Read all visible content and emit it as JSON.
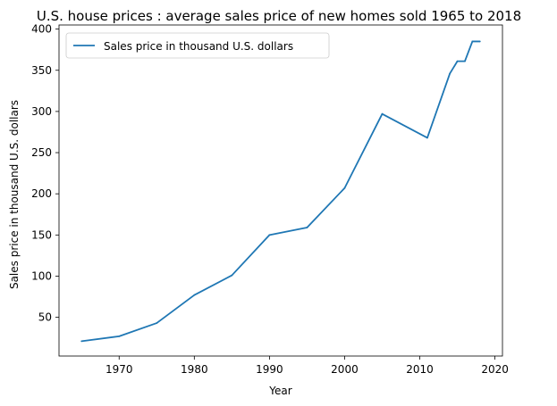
{
  "chart_data": {
    "type": "line",
    "title": "U.S. house prices : average sales price of new homes sold 1965 to 2018",
    "xlabel": "Year",
    "ylabel": "Sales price in thousand U.S. dollars",
    "xlim": [
      1962,
      2021
    ],
    "ylim": [
      3,
      405
    ],
    "xticks": [
      1970,
      1980,
      1990,
      2000,
      2010,
      2020
    ],
    "yticks": [
      50,
      100,
      150,
      200,
      250,
      300,
      350,
      400
    ],
    "grid": false,
    "legend_position": "upper-left",
    "series": [
      {
        "name": "Sales price in thousand U.S. dollars",
        "color": "#1f77b4",
        "x": [
          1965,
          1970,
          1975,
          1980,
          1985,
          1990,
          1995,
          2000,
          2005,
          2011,
          2014,
          2015,
          2016,
          2017,
          2018
        ],
        "y": [
          21,
          27,
          43,
          77,
          101,
          150,
          159,
          207,
          297,
          268,
          346,
          361,
          361,
          385,
          385
        ]
      }
    ]
  }
}
